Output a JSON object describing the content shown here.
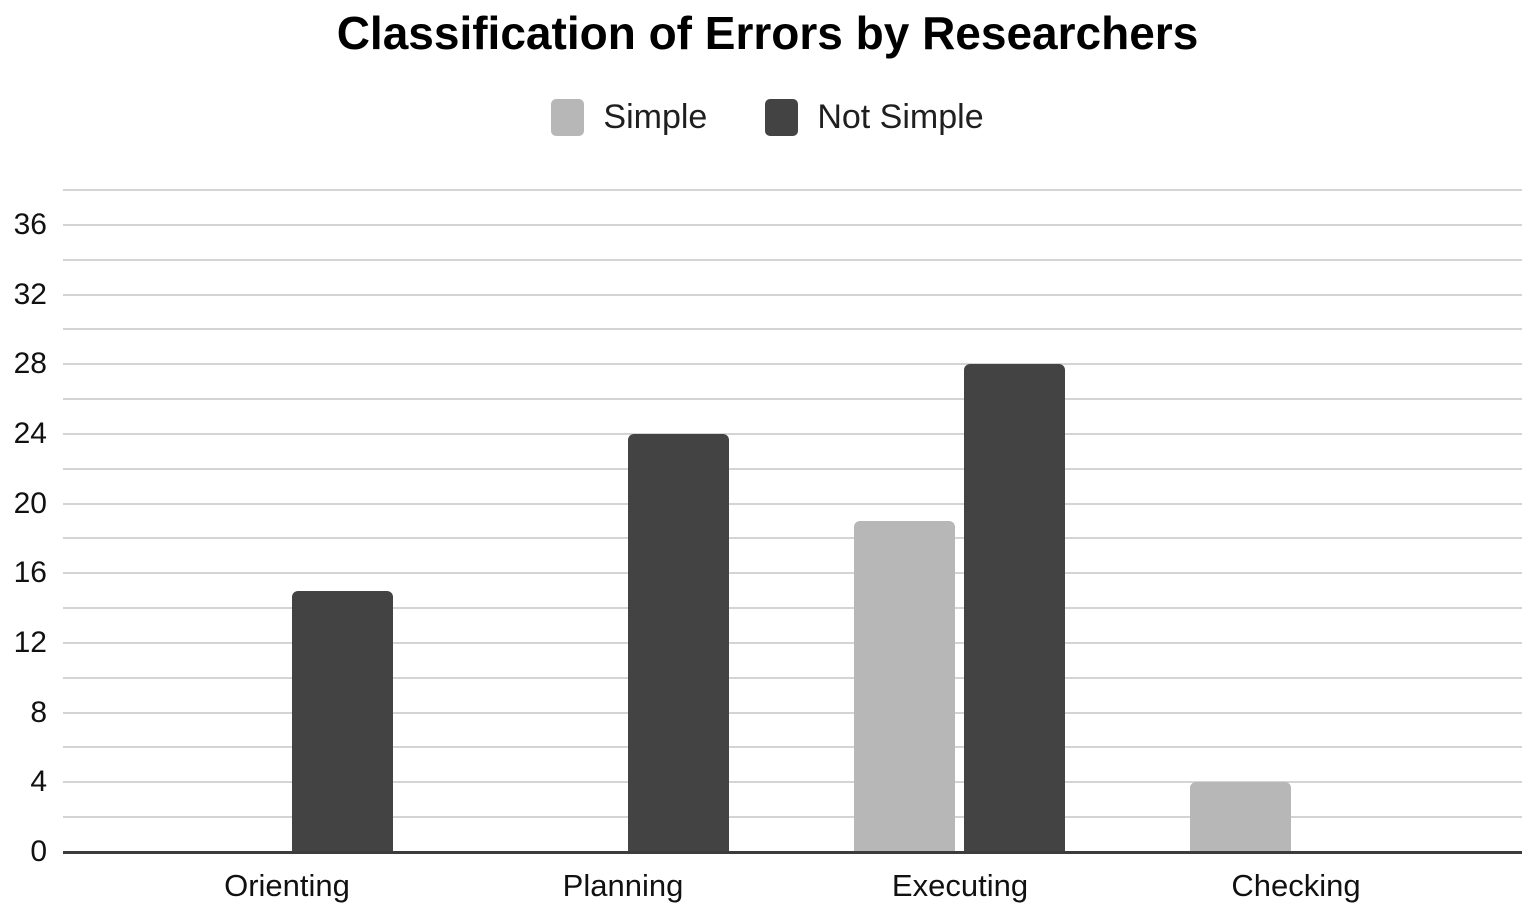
{
  "chart_data": {
    "type": "bar",
    "title": "Classification of Errors by Researchers",
    "xlabel": "",
    "ylabel": "",
    "categories": [
      "Orienting",
      "Planning",
      "Executing",
      "Checking"
    ],
    "series": [
      {
        "name": "Simple",
        "color": "#b7b7b7",
        "values": [
          0,
          0,
          19,
          4
        ]
      },
      {
        "name": "Not Simple",
        "color": "#434343",
        "values": [
          15,
          24,
          28,
          0
        ]
      }
    ],
    "y_axis": {
      "min": 0,
      "max": 38,
      "tick_interval": 4,
      "minor_gridline_interval": 2,
      "tick_labels": [
        "0",
        "4",
        "8",
        "12",
        "16",
        "20",
        "24",
        "28",
        "32",
        "36"
      ]
    },
    "legend": {
      "position": "top"
    },
    "grid": true,
    "gridline_color": "#d4d4d4",
    "axis_line_color": "#3c3c3c",
    "background_color": "#ffffff"
  }
}
